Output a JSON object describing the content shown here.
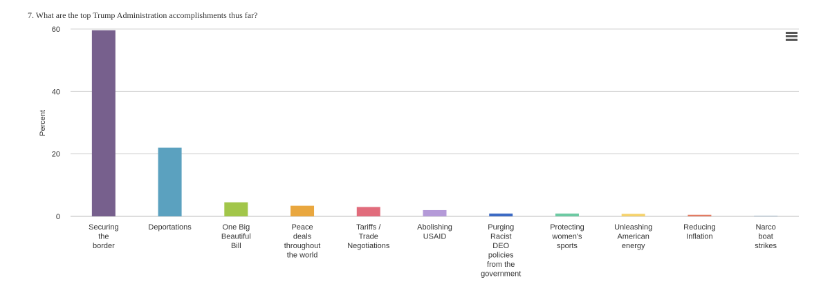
{
  "question_title": "7. What are the top Trump Administration accomplishments thus far?",
  "menu_icon": "hamburger-menu-icon",
  "chart_data": {
    "type": "bar",
    "title": "",
    "xlabel": "",
    "ylabel": "Percent",
    "ylim": [
      0,
      60
    ],
    "yticks": [
      0,
      20,
      40,
      60
    ],
    "grid": true,
    "legend": "none",
    "categories": [
      "Securing the border",
      "Deportations",
      "One Big Beautiful Bill",
      "Peace deals throughout the world",
      "Tariffs / Trade Negotiations",
      "Abolishing USAID",
      "Purging Racist DEO policies from the government",
      "Protecting women's sports",
      "Unleashing American energy",
      "Reducing Inflation",
      "Narco boat strikes"
    ],
    "category_lines": [
      [
        "Securing",
        "the",
        "border"
      ],
      [
        "Deportations"
      ],
      [
        "One Big",
        "Beautiful",
        "Bill"
      ],
      [
        "Peace",
        "deals",
        "throughout",
        "the world"
      ],
      [
        "Tariffs /",
        "Trade",
        "Negotiations"
      ],
      [
        "Abolishing",
        "USAID"
      ],
      [
        "Purging",
        "Racist",
        "DEO",
        "policies",
        "from the",
        "government"
      ],
      [
        "Protecting",
        "women's",
        "sports"
      ],
      [
        "Unleashing",
        "American",
        "energy"
      ],
      [
        "Reducing",
        "Inflation"
      ],
      [
        "Narco",
        "boat",
        "strikes"
      ]
    ],
    "values": [
      59.6,
      22.0,
      4.5,
      3.4,
      3.0,
      2.0,
      0.9,
      0.9,
      0.8,
      0.5,
      0.2
    ],
    "colors": [
      "#77608d",
      "#5ba1bf",
      "#a2c64a",
      "#e9a73f",
      "#e16c7c",
      "#b49ad8",
      "#3c6ac4",
      "#6dcaa3",
      "#f5d26b",
      "#e37b62",
      "#a0b4c8"
    ]
  }
}
